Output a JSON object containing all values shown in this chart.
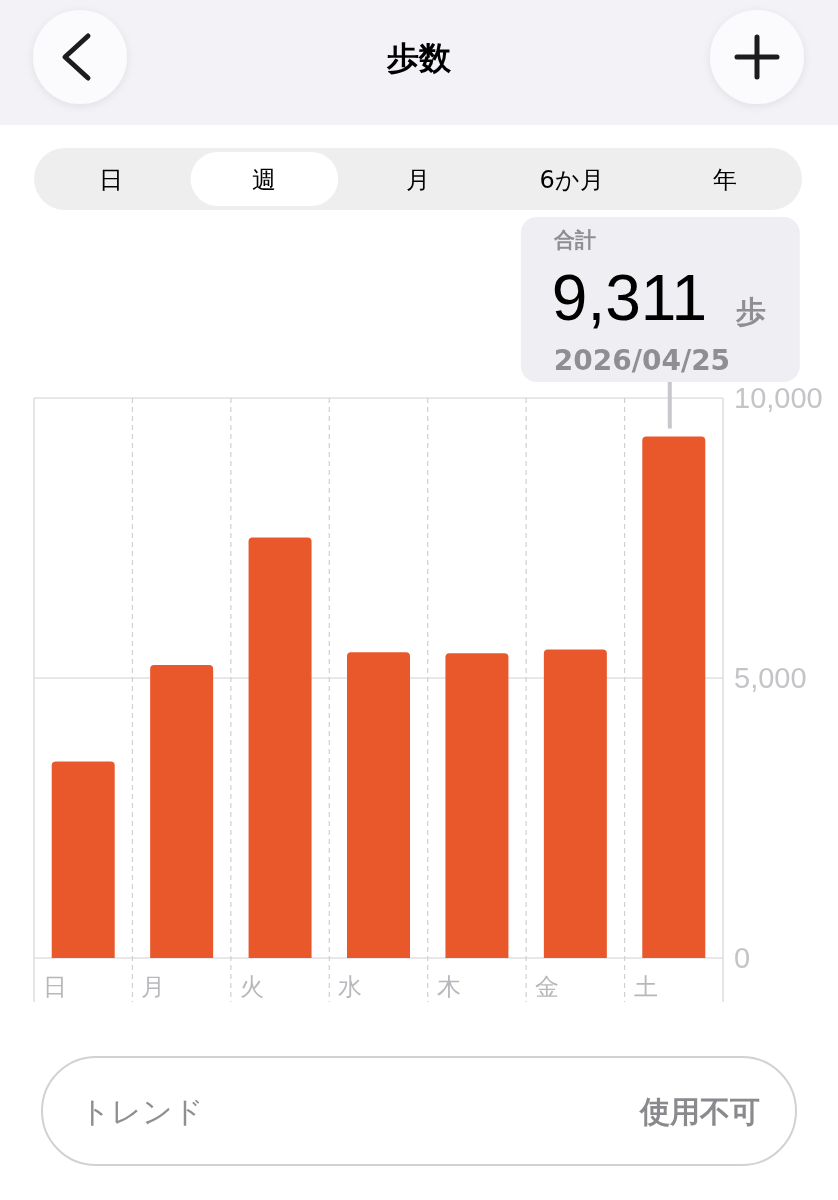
{
  "chart_data": {
    "type": "bar",
    "title": "歩数",
    "categories": [
      "日",
      "月",
      "火",
      "水",
      "木",
      "金",
      "土"
    ],
    "values": [
      3510,
      5230,
      7510,
      5460,
      5440,
      5510,
      9311
    ],
    "color": "#e9582b",
    "ylim": [
      0,
      10000
    ],
    "yticks": [
      0,
      {
        "value": 5000,
        "label": "5,000"
      },
      {
        "value": 10000,
        "label": "10,000"
      }
    ],
    "grid": true,
    "annotations": [
      "日",
      "週",
      "月",
      "6か月",
      "年",
      "合計",
      {
        "text": "9,311",
        "x": "土",
        "y": 9311
      },
      "歩",
      "2026/04/25",
      "トレンド",
      "使用不可"
    ]
  }
}
